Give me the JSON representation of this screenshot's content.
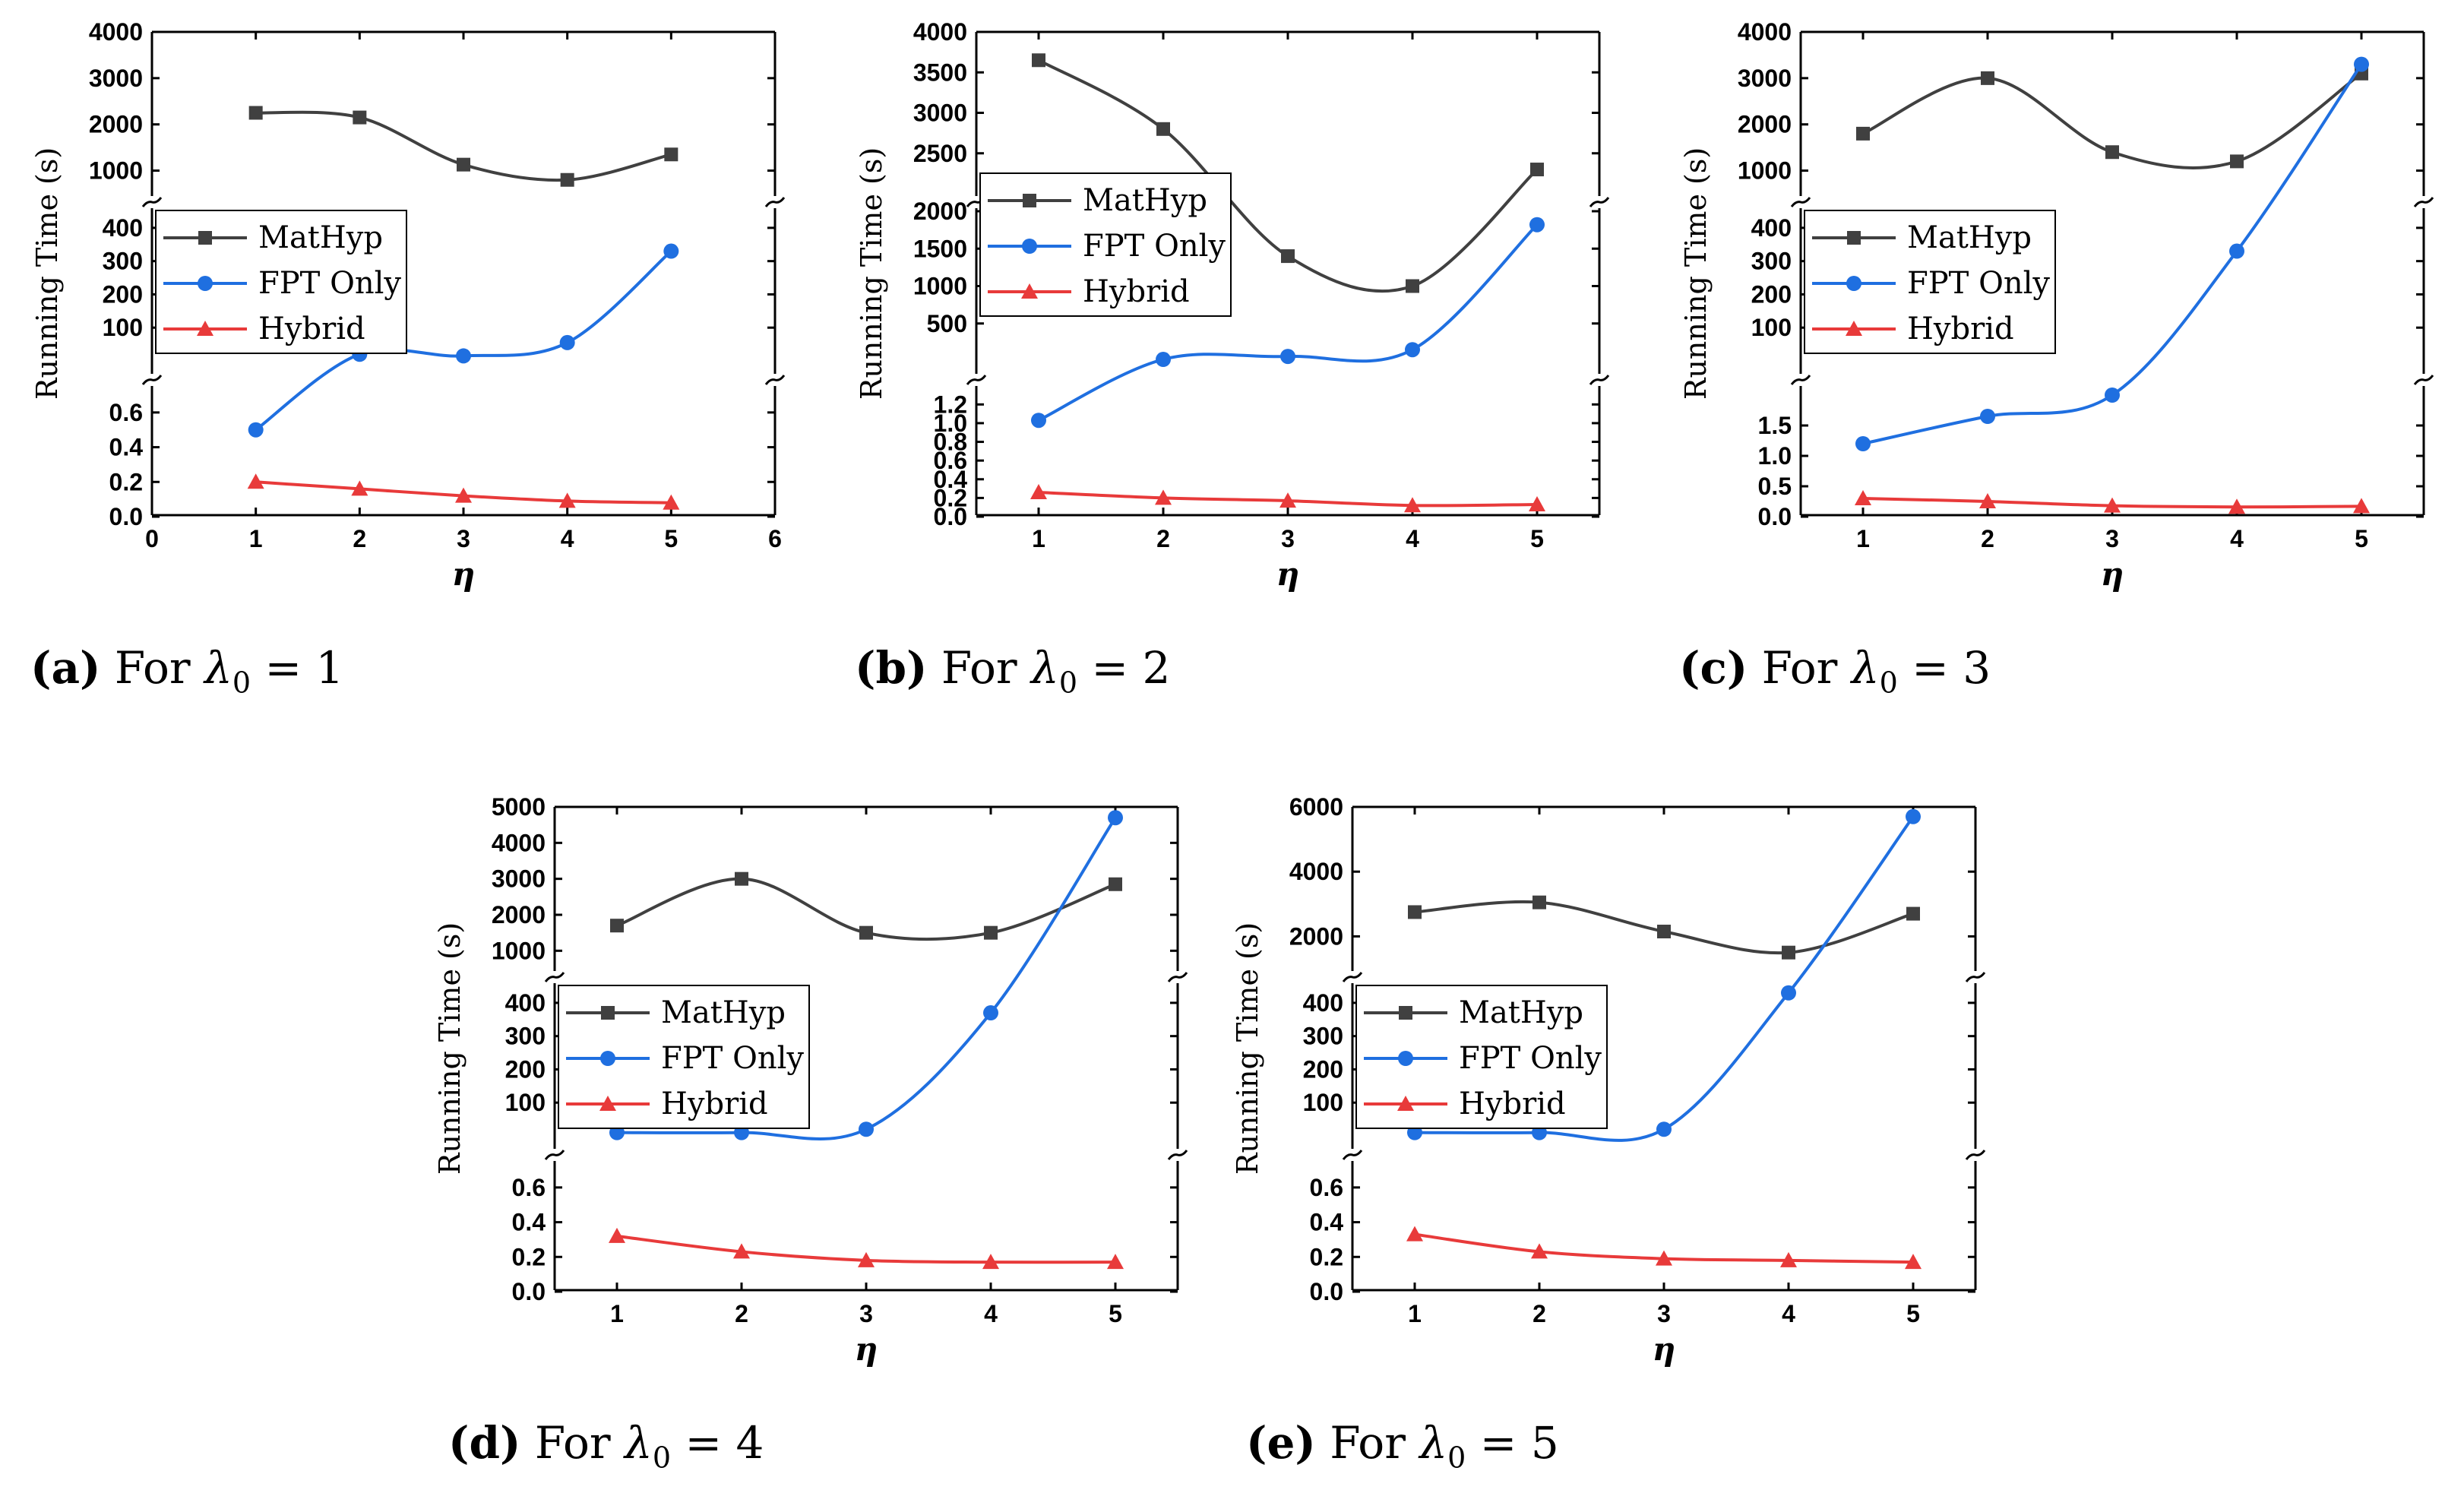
{
  "figure": {
    "ylabel": "Running Time (s)",
    "xlabel": "η",
    "legend_labels": [
      "MatHyp",
      "FPT Only",
      "Hybrid"
    ]
  },
  "colors": {
    "MatHyp": "#404040",
    "FPT Only": "#1f6fe0",
    "Hybrid": "#e83a3a"
  },
  "captions": [
    {
      "label": "(a)",
      "prefix": "For",
      "symbol": "λ",
      "sub": "0",
      "rest": "= 1"
    },
    {
      "label": "(b)",
      "prefix": "For",
      "symbol": "λ",
      "sub": "0",
      "rest": "= 2"
    },
    {
      "label": "(c)",
      "prefix": "For",
      "symbol": "λ",
      "sub": "0",
      "rest": "= 3"
    },
    {
      "label": "(d)",
      "prefix": "For",
      "symbol": "λ",
      "sub": "0",
      "rest": "= 4"
    },
    {
      "label": "(e)",
      "prefix": "For",
      "symbol": "λ",
      "sub": "0",
      "rest": "= 5"
    }
  ],
  "chart_data": [
    {
      "type": "line",
      "title": "For λ0 = 1",
      "xlabel": "η",
      "ylabel": "Running Time (s)",
      "x": [
        1,
        2,
        3,
        4,
        5
      ],
      "xlim": [
        0,
        6
      ],
      "xticks": [
        "0",
        "1",
        "2",
        "3",
        "4",
        "5",
        "6"
      ],
      "broken_axis": [
        {
          "ylim": [
            0,
            0.7
          ],
          "ticks": [
            "0.0",
            "0.2",
            "0.4",
            "0.6"
          ]
        },
        {
          "ylim": [
            0,
            450
          ],
          "ticks": [
            "100",
            "200",
            "300",
            "400"
          ]
        },
        {
          "ylim": [
            500,
            4000
          ],
          "ticks": [
            "1000",
            "2000",
            "3000",
            "4000"
          ]
        }
      ],
      "series": [
        {
          "name": "MatHyp",
          "segment": 2,
          "values": [
            2250,
            2150,
            1130,
            800,
            1350
          ]
        },
        {
          "name": "FPT Only",
          "segment": 1,
          "values": [
            0.5,
            20,
            15,
            55,
            330
          ]
        },
        {
          "name": "Hybrid",
          "segment": 0,
          "values": [
            0.2,
            0.16,
            0.12,
            0.09,
            0.08
          ]
        }
      ],
      "legend": "middle-left"
    },
    {
      "type": "line",
      "title": "For λ0 = 2",
      "xlabel": "η",
      "ylabel": "Running Time (s)",
      "x": [
        1,
        2,
        3,
        4,
        5
      ],
      "xlim": [
        0.5,
        5.5
      ],
      "xticks": [
        "1",
        "2",
        "3",
        "4",
        "5"
      ],
      "broken_axis": [
        {
          "ylim": [
            0,
            1.3
          ],
          "ticks": [
            "0.0",
            "0.2",
            "0.4",
            "0.6",
            "0.8",
            "1.0",
            "1.2"
          ]
        },
        {
          "ylim": [
            0,
            2000
          ],
          "ticks": [
            "500",
            "1000",
            "1500",
            "2000"
          ]
        },
        {
          "ylim": [
            2000,
            4000
          ],
          "ticks": [
            "2500",
            "3000",
            "3500",
            "4000"
          ]
        }
      ],
      "series": [
        {
          "name": "MatHyp",
          "values": [
            3650,
            2800,
            1400,
            1000,
            2300
          ]
        },
        {
          "name": "FPT Only",
          "values": [
            1.03,
            20,
            60,
            150,
            1820
          ]
        },
        {
          "name": "Hybrid",
          "values": [
            0.26,
            0.2,
            0.17,
            0.12,
            0.13
          ]
        }
      ],
      "legend": "upper-left"
    },
    {
      "type": "line",
      "title": "For λ0 = 3",
      "xlabel": "η",
      "ylabel": "Running Time (s)",
      "x": [
        1,
        2,
        3,
        4,
        5
      ],
      "xlim": [
        0.5,
        5.5
      ],
      "xticks": [
        "1",
        "2",
        "3",
        "4",
        "5"
      ],
      "broken_axis": [
        {
          "ylim": [
            0,
            2.0
          ],
          "ticks": [
            "0.0",
            "0.5",
            "1.0",
            "1.5"
          ]
        },
        {
          "ylim": [
            0,
            450
          ],
          "ticks": [
            "100",
            "200",
            "300",
            "400"
          ]
        },
        {
          "ylim": [
            500,
            4000
          ],
          "ticks": [
            "1000",
            "2000",
            "3000",
            "4000"
          ]
        }
      ],
      "series": [
        {
          "name": "MatHyp",
          "values": [
            1800,
            3000,
            1400,
            1200,
            3100
          ]
        },
        {
          "name": "FPT Only",
          "values": [
            1.2,
            1.65,
            2.0,
            330,
            3300
          ]
        },
        {
          "name": "Hybrid",
          "values": [
            0.3,
            0.25,
            0.18,
            0.16,
            0.17
          ]
        }
      ],
      "legend": "middle-left"
    },
    {
      "type": "line",
      "title": "For λ0 = 4",
      "xlabel": "η",
      "ylabel": "Running Time (s)",
      "x": [
        1,
        2,
        3,
        4,
        5
      ],
      "xlim": [
        0.5,
        5.5
      ],
      "xticks": [
        "1",
        "2",
        "3",
        "4",
        "5"
      ],
      "broken_axis": [
        {
          "ylim": [
            0,
            0.7
          ],
          "ticks": [
            "0.0",
            "0.2",
            "0.4",
            "0.6"
          ]
        },
        {
          "ylim": [
            0,
            450
          ],
          "ticks": [
            "100",
            "200",
            "300",
            "400"
          ]
        },
        {
          "ylim": [
            500,
            5000
          ],
          "ticks": [
            "1000",
            "2000",
            "3000",
            "4000",
            "5000"
          ]
        }
      ],
      "series": [
        {
          "name": "MatHyp",
          "values": [
            1700,
            3000,
            1500,
            1500,
            2850
          ]
        },
        {
          "name": "FPT Only",
          "values": [
            10,
            10,
            20,
            370,
            4700
          ]
        },
        {
          "name": "Hybrid",
          "values": [
            0.32,
            0.23,
            0.18,
            0.17,
            0.17
          ]
        }
      ],
      "legend": "middle-left"
    },
    {
      "type": "line",
      "title": "For λ0 = 5",
      "xlabel": "η",
      "ylabel": "Running Time (s)",
      "x": [
        1,
        2,
        3,
        4,
        5
      ],
      "xlim": [
        0.5,
        5.5
      ],
      "xticks": [
        "1",
        "2",
        "3",
        "4",
        "5"
      ],
      "broken_axis": [
        {
          "ylim": [
            0,
            0.7
          ],
          "ticks": [
            "0.0",
            "0.2",
            "0.4",
            "0.6"
          ]
        },
        {
          "ylim": [
            0,
            450
          ],
          "ticks": [
            "100",
            "200",
            "300",
            "400"
          ]
        },
        {
          "ylim": [
            1000,
            6000
          ],
          "ticks": [
            "2000",
            "4000",
            "6000"
          ]
        }
      ],
      "series": [
        {
          "name": "MatHyp",
          "values": [
            2750,
            3050,
            2150,
            1500,
            2700
          ]
        },
        {
          "name": "FPT Only",
          "values": [
            10,
            10,
            20,
            430,
            5700
          ]
        },
        {
          "name": "Hybrid",
          "values": [
            0.33,
            0.23,
            0.19,
            0.18,
            0.17
          ]
        }
      ],
      "legend": "middle-left"
    }
  ]
}
